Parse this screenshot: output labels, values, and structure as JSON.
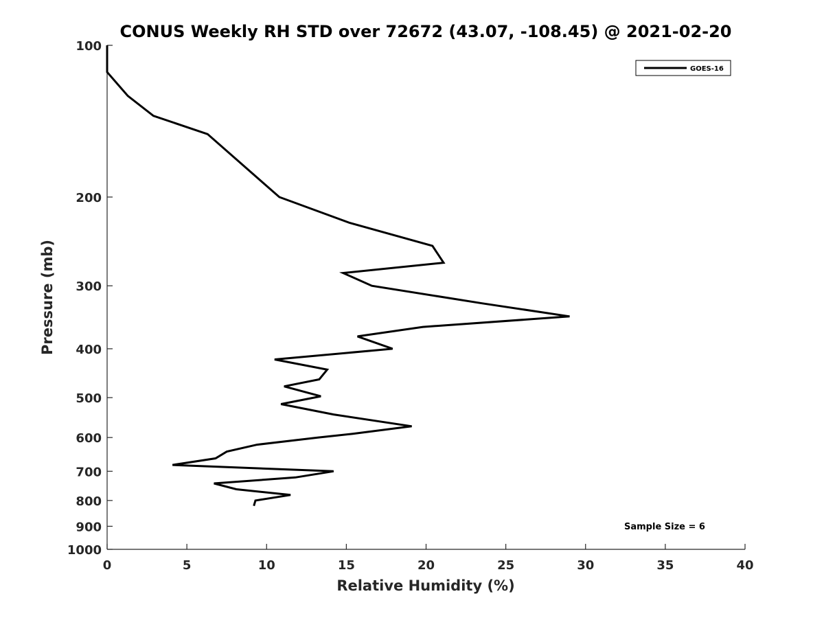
{
  "chart_data": {
    "type": "line",
    "title": "CONUS Weekly RH STD over 72672 (43.07, -108.45) @ 2021-02-20",
    "xlabel": "Relative Humidity (%)",
    "ylabel": "Pressure (mb)",
    "xlim": [
      0,
      40
    ],
    "ylim": [
      100,
      1000
    ],
    "y_scale": "log",
    "y_reversed": true,
    "grid": false,
    "legend_placement": "top-right",
    "line_color": "#000000",
    "xticks": [
      0,
      5,
      10,
      15,
      20,
      25,
      30,
      35,
      40
    ],
    "xtick_labels": [
      "0",
      "5",
      "10",
      "15",
      "20",
      "25",
      "30",
      "35",
      "40"
    ],
    "yticks": [
      100,
      200,
      300,
      400,
      500,
      600,
      700,
      800,
      900,
      1000
    ],
    "ytick_labels": [
      "100",
      "200",
      "300",
      "400",
      "500",
      "600",
      "700",
      "800",
      "900",
      "1000"
    ],
    "series": [
      {
        "name": "GOES-16",
        "points": [
          [
            0.0,
            100
          ],
          [
            0.0,
            113
          ],
          [
            1.3,
            126
          ],
          [
            2.9,
            138
          ],
          [
            6.3,
            150
          ],
          [
            10.8,
            200
          ],
          [
            15.2,
            225
          ],
          [
            20.4,
            250
          ],
          [
            21.1,
            270
          ],
          [
            14.8,
            283
          ],
          [
            16.6,
            300
          ],
          [
            23.5,
            325
          ],
          [
            29.0,
            345
          ],
          [
            19.8,
            362
          ],
          [
            15.7,
            378
          ],
          [
            17.9,
            400
          ],
          [
            10.5,
            420
          ],
          [
            13.8,
            440
          ],
          [
            13.3,
            460
          ],
          [
            11.1,
            475
          ],
          [
            13.4,
            497
          ],
          [
            10.9,
            515
          ],
          [
            14.2,
            540
          ],
          [
            19.1,
            570
          ],
          [
            15.4,
            590
          ],
          [
            13.2,
            600
          ],
          [
            9.4,
            620
          ],
          [
            7.5,
            640
          ],
          [
            6.8,
            660
          ],
          [
            4.1,
            680
          ],
          [
            14.2,
            700
          ],
          [
            11.8,
            720
          ],
          [
            6.7,
            740
          ],
          [
            8.1,
            760
          ],
          [
            11.5,
            780
          ],
          [
            9.3,
            800
          ],
          [
            9.2,
            820
          ]
        ]
      }
    ],
    "annotations": [
      "Sample Size = 6"
    ]
  }
}
